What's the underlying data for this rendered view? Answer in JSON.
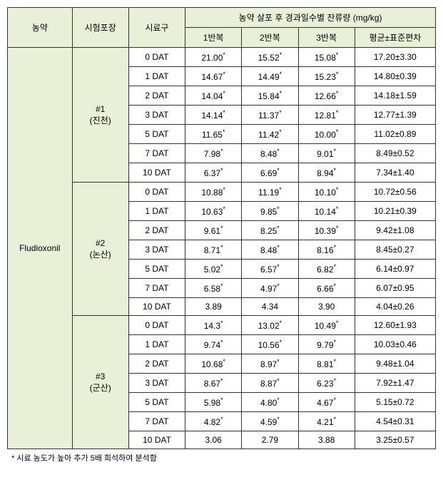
{
  "headers": {
    "pesticide": "농약",
    "field": "시험포장",
    "sample": "시료구",
    "group": "농약 살포 후 경과일수별 잔류량 (mg/kg)",
    "rep1": "1반복",
    "rep2": "2반복",
    "rep3": "3반복",
    "mean": "평균±표준편차"
  },
  "pesticide": "Fludioxonil",
  "fields": [
    {
      "name": "#1",
      "loc": "(진천)"
    },
    {
      "name": "#2",
      "loc": "(논산)"
    },
    {
      "name": "#3",
      "loc": "(군산)"
    }
  ],
  "rows": [
    {
      "dat": "0 DAT",
      "r1": "21.00",
      "s1": true,
      "r2": "15.52",
      "s2": true,
      "r3": "15.08",
      "s3": true,
      "mean": "17.20±3.30"
    },
    {
      "dat": "1 DAT",
      "r1": "14.67",
      "s1": true,
      "r2": "14.49",
      "s2": true,
      "r3": "15.23",
      "s3": true,
      "mean": "14.80±0.39"
    },
    {
      "dat": "2 DAT",
      "r1": "14.04",
      "s1": true,
      "r2": "15.84",
      "s2": true,
      "r3": "12.66",
      "s3": true,
      "mean": "14.18±1.59"
    },
    {
      "dat": "3 DAT",
      "r1": "14.14",
      "s1": true,
      "r2": "11.37",
      "s2": true,
      "r3": "12.81",
      "s3": true,
      "mean": "12.77±1.39"
    },
    {
      "dat": "5 DAT",
      "r1": "11.65",
      "s1": true,
      "r2": "11.42",
      "s2": true,
      "r3": "10.00",
      "s3": true,
      "mean": "11.02±0.89"
    },
    {
      "dat": "7 DAT",
      "r1": "7.98",
      "s1": true,
      "r2": "8.48",
      "s2": true,
      "r3": "9.01",
      "s3": true,
      "mean": "8.49±0.52"
    },
    {
      "dat": "10 DAT",
      "r1": "6.37",
      "s1": true,
      "r2": "6.69",
      "s2": true,
      "r3": "8.94",
      "s3": true,
      "mean": "7.34±1.40"
    },
    {
      "dat": "0 DAT",
      "r1": "10.88",
      "s1": true,
      "r2": "11.19",
      "s2": true,
      "r3": "10.10",
      "s3": true,
      "mean": "10.72±0.56"
    },
    {
      "dat": "1 DAT",
      "r1": "10.63",
      "s1": true,
      "r2": "9.85",
      "s2": true,
      "r3": "10.14",
      "s3": true,
      "mean": "10.21±0.39"
    },
    {
      "dat": "2 DAT",
      "r1": "9.61",
      "s1": true,
      "r2": "8.25",
      "s2": true,
      "r3": "10.39",
      "s3": true,
      "mean": "9.42±1.08"
    },
    {
      "dat": "3 DAT",
      "r1": "8.71",
      "s1": true,
      "r2": "8.48",
      "s2": true,
      "r3": "8.16",
      "s3": true,
      "mean": "8.45±0.27"
    },
    {
      "dat": "5 DAT",
      "r1": "5.02",
      "s1": true,
      "r2": "6.57",
      "s2": true,
      "r3": "6.82",
      "s3": true,
      "mean": "6.14±0.97"
    },
    {
      "dat": "7 DAT",
      "r1": "6.58",
      "s1": true,
      "r2": "4.97",
      "s2": true,
      "r3": "6.66",
      "s3": true,
      "mean": "6.07±0.95"
    },
    {
      "dat": "10 DAT",
      "r1": "3.89",
      "s1": false,
      "r2": "4.34",
      "s2": false,
      "r3": "3.90",
      "s3": false,
      "mean": "4.04±0.26"
    },
    {
      "dat": "0 DAT",
      "r1": "14.3",
      "s1": true,
      "r2": "13.02",
      "s2": true,
      "r3": "10.49",
      "s3": true,
      "mean": "12.60±1.93"
    },
    {
      "dat": "1 DAT",
      "r1": "9.74",
      "s1": true,
      "r2": "10.56",
      "s2": true,
      "r3": "9.79",
      "s3": true,
      "mean": "10.03±0.46"
    },
    {
      "dat": "2 DAT",
      "r1": "10.68",
      "s1": true,
      "r2": "8.97",
      "s2": true,
      "r3": "8.81",
      "s3": true,
      "mean": "9.48±1.04"
    },
    {
      "dat": "3 DAT",
      "r1": "8.67",
      "s1": true,
      "r2": "8.87",
      "s2": true,
      "r3": "6.23",
      "s3": true,
      "mean": "7.92±1.47"
    },
    {
      "dat": "5 DAT",
      "r1": "5.98",
      "s1": true,
      "r2": "4.80",
      "s2": true,
      "r3": "4.67",
      "s3": true,
      "mean": "5.15±0.72"
    },
    {
      "dat": "7 DAT",
      "r1": "4.82",
      "s1": true,
      "r2": "4.59",
      "s2": true,
      "r3": "4.21",
      "s3": true,
      "mean": "4.54±0.31"
    },
    {
      "dat": "10 DAT",
      "r1": "3.06",
      "s1": false,
      "r2": "2.79",
      "s2": false,
      "r3": "3.88",
      "s3": false,
      "mean": "3.25±0.57"
    }
  ],
  "footnote": "* 시료 농도가 높아 추가 5배 희석하여 분석함"
}
